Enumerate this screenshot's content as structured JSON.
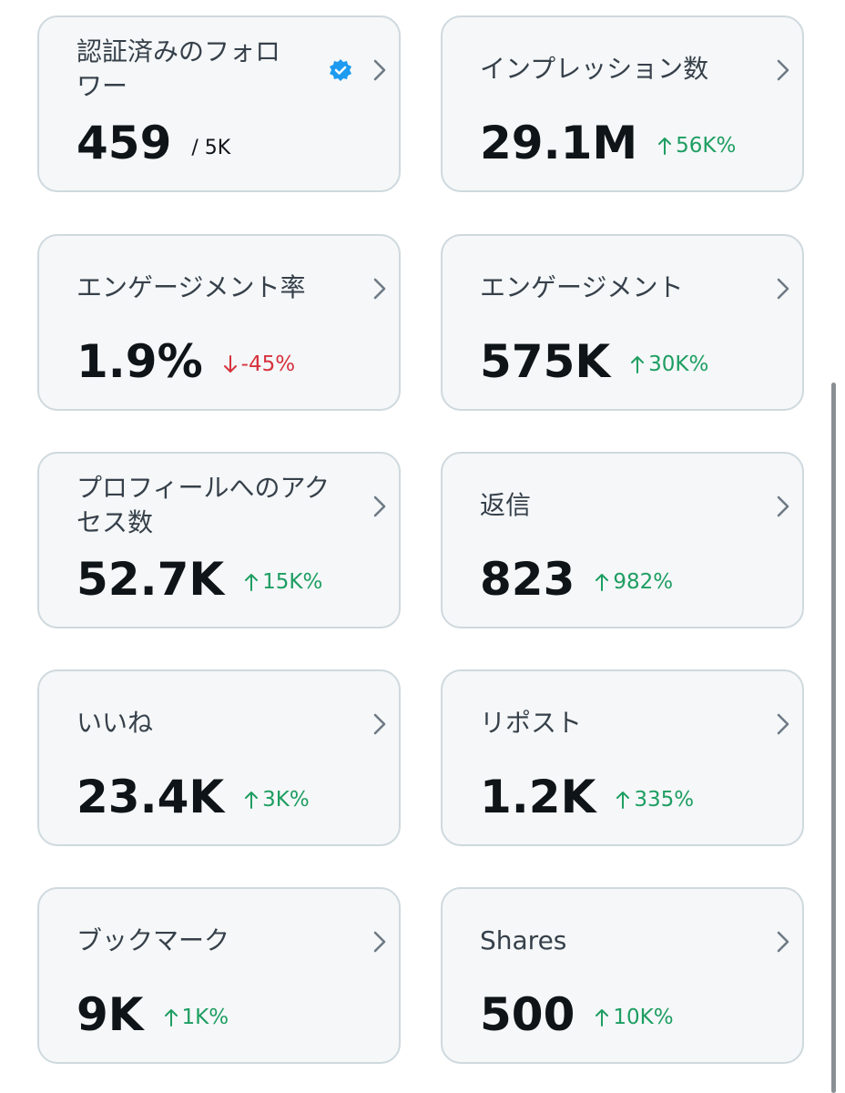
{
  "cards": [
    {
      "label": "認証済みのフォロワー",
      "value": "459",
      "suffix": "/ 5K",
      "verified": true
    },
    {
      "label": "インプレッション数",
      "value": "29.1M",
      "change": "56K%",
      "trend": "up"
    },
    {
      "label": "エンゲージメント率",
      "value": "1.9%",
      "change": "-45%",
      "trend": "down"
    },
    {
      "label": "エンゲージメント",
      "value": "575K",
      "change": "30K%",
      "trend": "up"
    },
    {
      "label": "プロフィールへのアクセス数",
      "value": "52.7K",
      "change": "15K%",
      "trend": "up"
    },
    {
      "label": "返信",
      "value": "823",
      "change": "982%",
      "trend": "up"
    },
    {
      "label": "いいね",
      "value": "23.4K",
      "change": "3K%",
      "trend": "up"
    },
    {
      "label": "リポスト",
      "value": "1.2K",
      "change": "335%",
      "trend": "up"
    },
    {
      "label": "ブックマーク",
      "value": "9K",
      "change": "1K%",
      "trend": "up"
    },
    {
      "label": "Shares",
      "value": "500",
      "change": "10K%",
      "trend": "up"
    }
  ]
}
